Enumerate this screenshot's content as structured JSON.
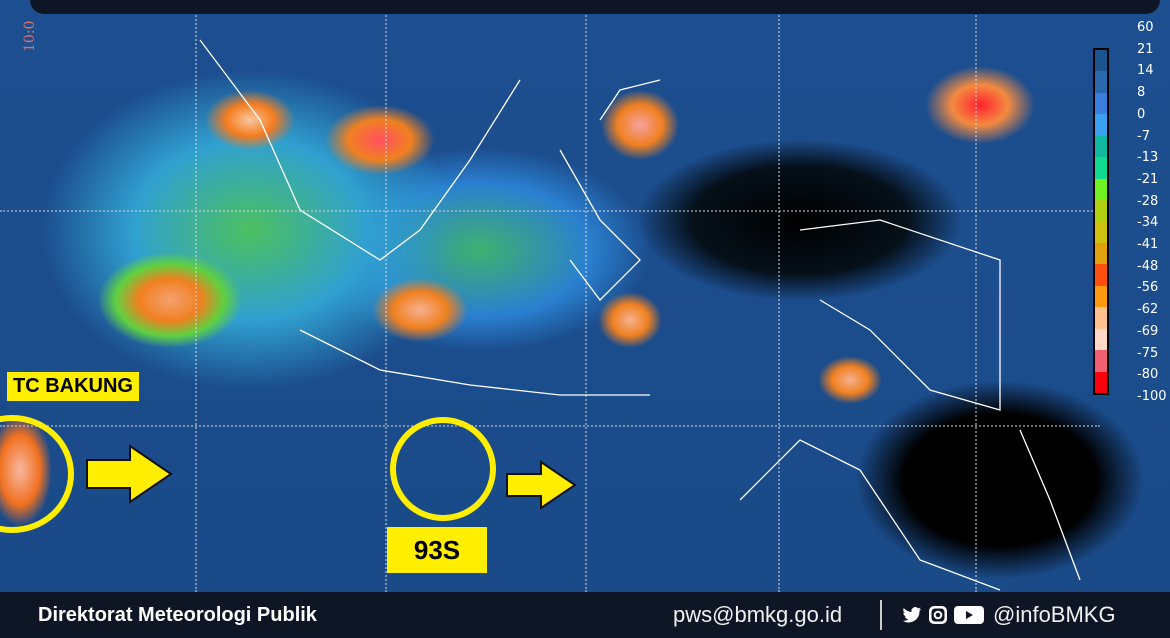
{
  "map": {
    "timestamp": "10:0",
    "annotations": {
      "tc_label": "TC BAKUNG",
      "invest_label": "93S"
    },
    "highlight_color": "#ffee00"
  },
  "legend": {
    "labels": [
      "60",
      "21",
      "14",
      "8",
      "0",
      "-7",
      "-13",
      "-21",
      "-28",
      "-34",
      "-41",
      "-48",
      "-56",
      "-62",
      "-69",
      "-75",
      "-80",
      "-100"
    ],
    "colors": [
      "#1a5590",
      "#2a68b0",
      "#3a7ee0",
      "#3aa0f0",
      "#10b8a0",
      "#10d890",
      "#70f020",
      "#b0d010",
      "#d0c010",
      "#e0a010",
      "#ff5010",
      "#ff9a10",
      "#ffc090",
      "#ffd8c8",
      "#f06070",
      "#ff0010"
    ]
  },
  "footer": {
    "organization": "Direktorat Meteorologi Publik",
    "email": "pws@bmkg.go.id",
    "social_icons": [
      "twitter-icon",
      "instagram-icon",
      "youtube-icon"
    ],
    "handle": "@infoBMKG"
  }
}
